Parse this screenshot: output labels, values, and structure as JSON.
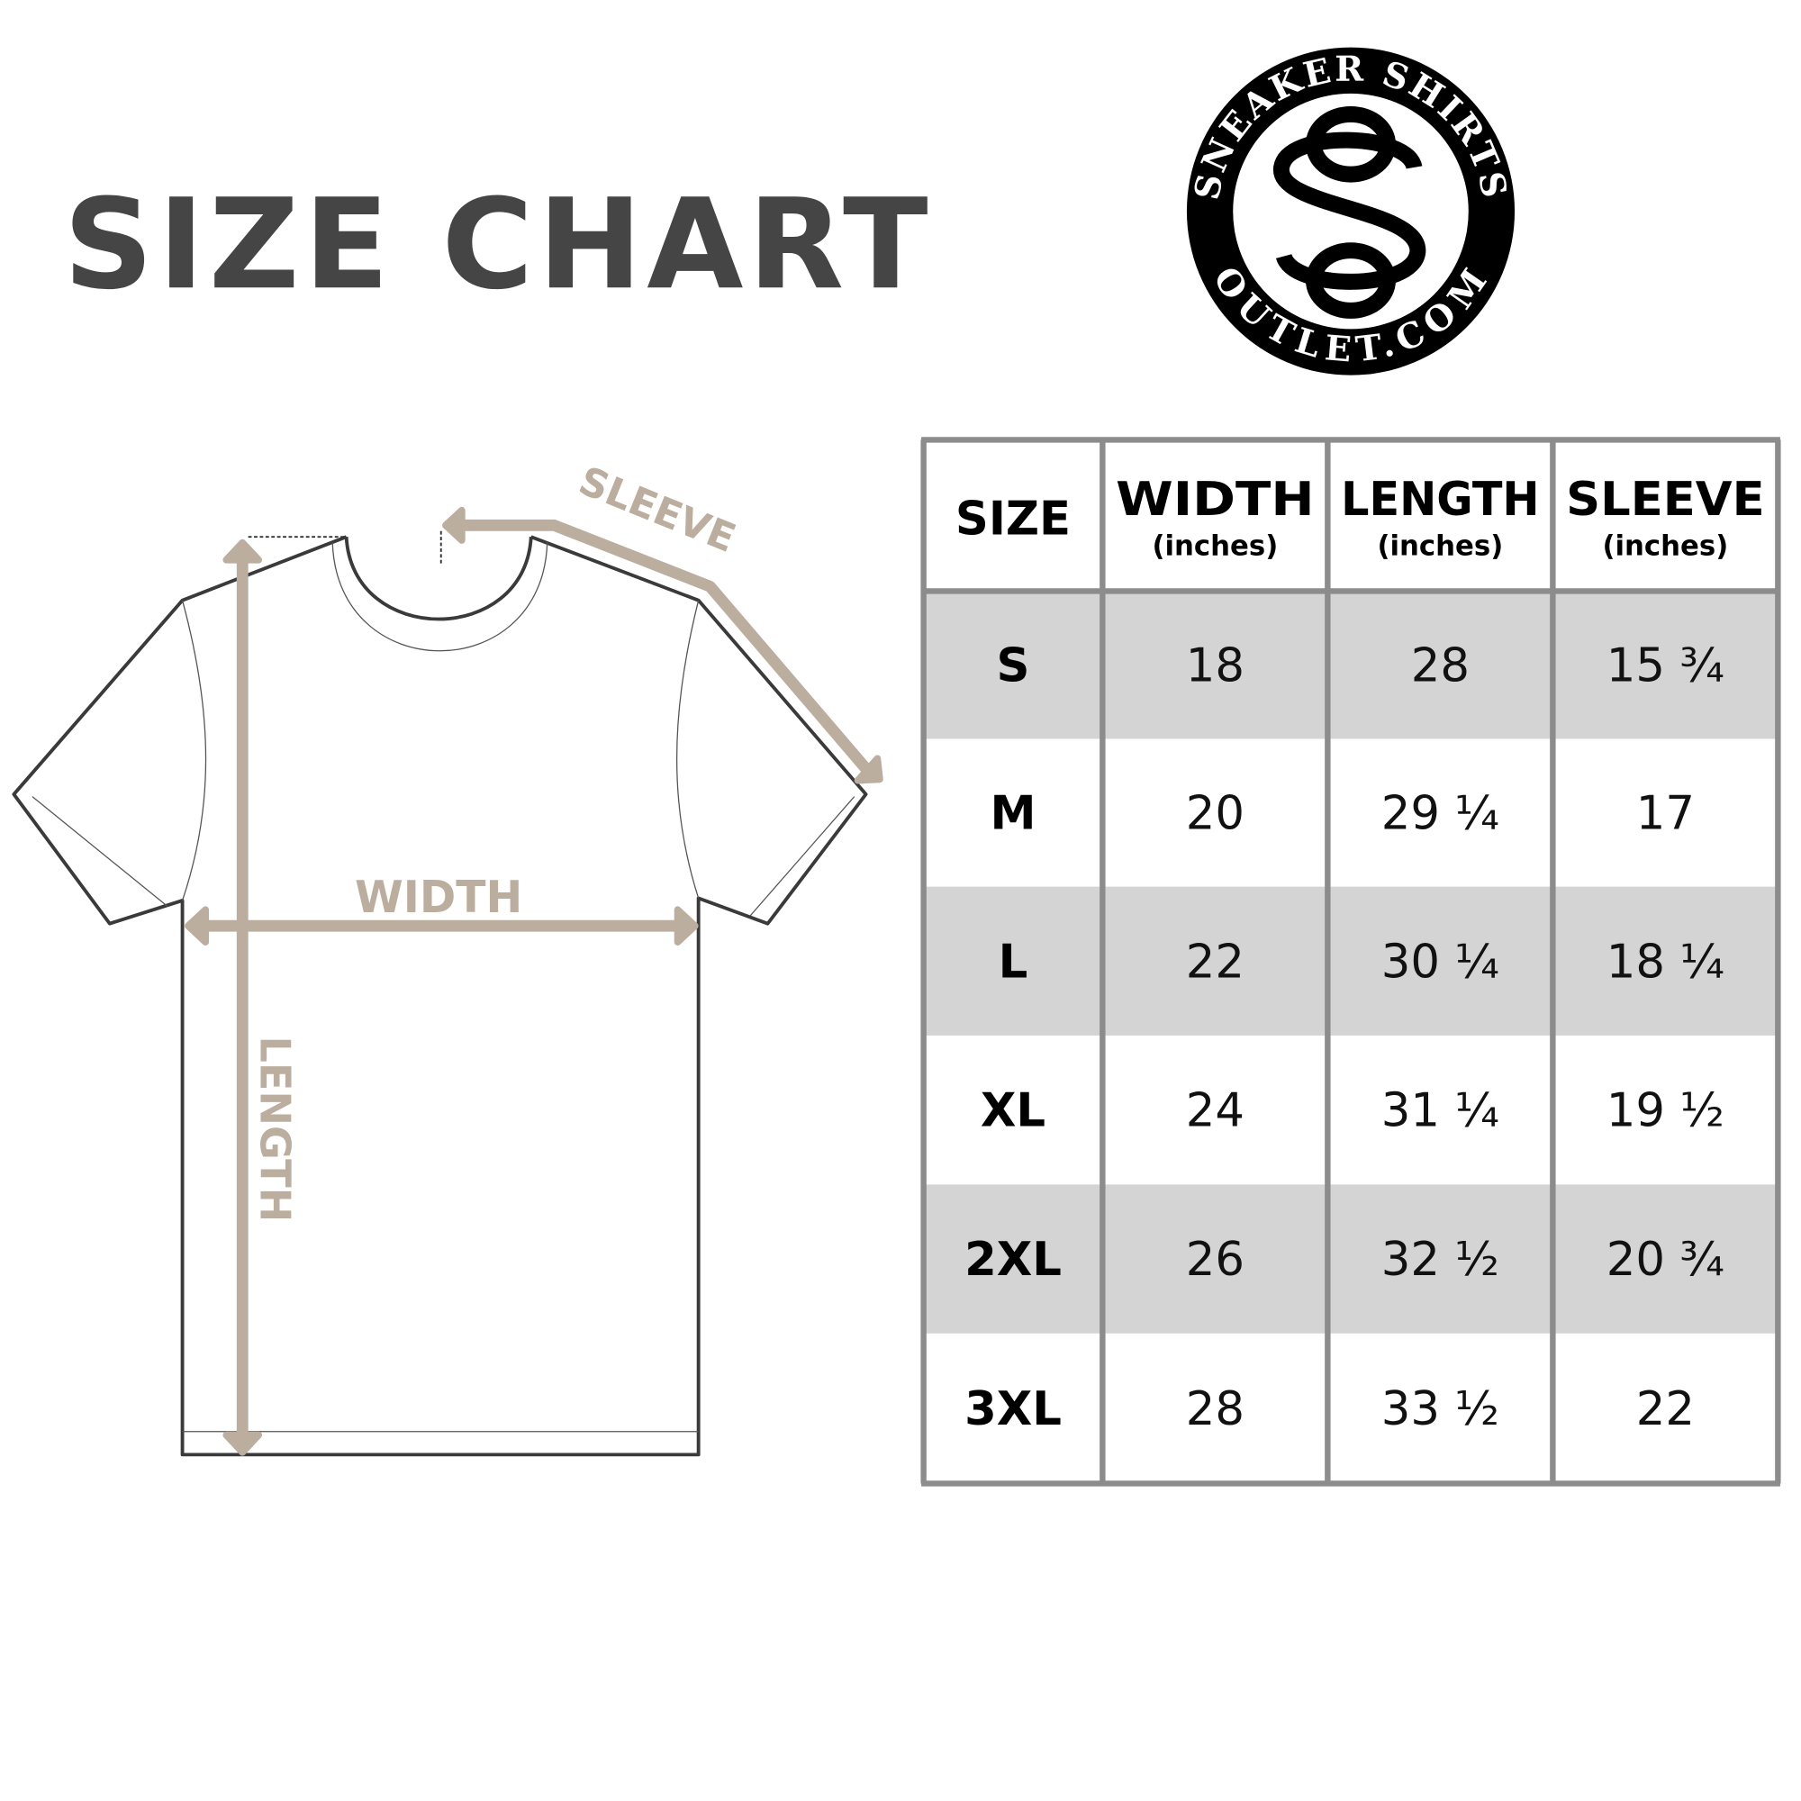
{
  "title": "SIZE CHART",
  "logo": {
    "top_text": "SNEAKER SHIRTS",
    "bottom_text": "OUTLET.COM",
    "monogram": "SO"
  },
  "diagram": {
    "sleeve_label": "SLEEVE",
    "width_label": "WIDTH",
    "length_label": "LENGTH",
    "arrow_color": "#bcae9e"
  },
  "table": {
    "headers": [
      {
        "label": "SIZE",
        "unit": ""
      },
      {
        "label": "WIDTH",
        "unit": "(inches)"
      },
      {
        "label": "LENGTH",
        "unit": "(inches)"
      },
      {
        "label": "SLEEVE",
        "unit": "(inches)"
      }
    ],
    "rows": [
      [
        "S",
        "18",
        "28",
        "15 ¾"
      ],
      [
        "M",
        "20",
        "29 ¼",
        "17"
      ],
      [
        "L",
        "22",
        "30 ¼",
        "18 ¼"
      ],
      [
        "XL",
        "24",
        "31 ¼",
        "19 ½"
      ],
      [
        "2XL",
        "26",
        "32 ½",
        "20 ¾"
      ],
      [
        "3XL",
        "28",
        "33 ½",
        "22"
      ]
    ],
    "shaded_row_color": "#d4d4d4",
    "border_color": "#8c8c8c"
  }
}
